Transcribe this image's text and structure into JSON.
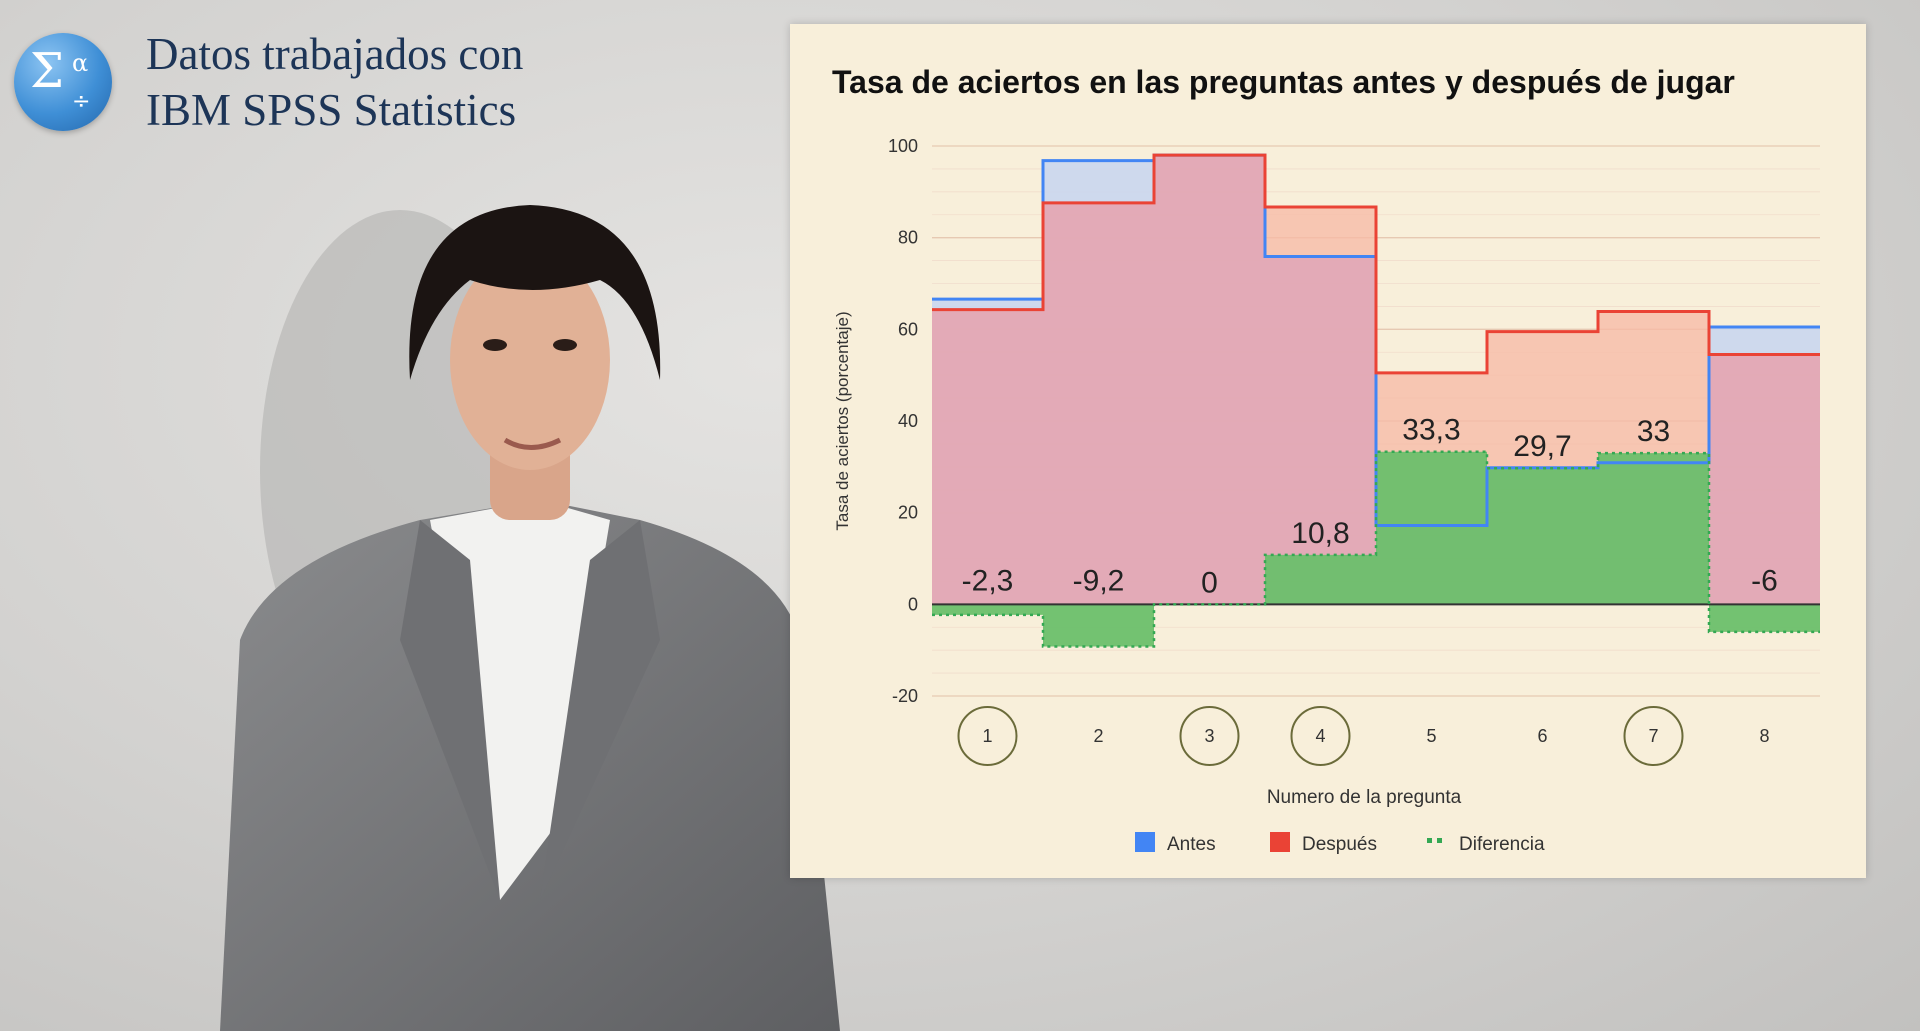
{
  "logo": {
    "icon": "sigma-alpha-divide-icon",
    "line1": "Datos trabajados con",
    "line2": "IBM SPSS Statistics"
  },
  "chart_data": {
    "type": "area",
    "title": "Tasa de aciertos en las preguntas antes y después de jugar",
    "xlabel": "Numero de la pregunta",
    "ylabel": "Tasa de aciertos (porcentaje)",
    "categories": [
      "1",
      "2",
      "3",
      "4",
      "5",
      "6",
      "7",
      "8"
    ],
    "circled_categories": [
      "1",
      "3",
      "4",
      "7"
    ],
    "ylim": [
      -20,
      100
    ],
    "yticks": [
      "-20",
      "0",
      "20",
      "40",
      "60",
      "80",
      "100"
    ],
    "grid": true,
    "legend_position": "bottom",
    "series": [
      {
        "name": "Antes",
        "color": "#4285f4",
        "fill": "#c9d6ee",
        "values": [
          66.6,
          96.8,
          98.0,
          75.9,
          17.2,
          29.8,
          30.9,
          60.5
        ]
      },
      {
        "name": "Después",
        "color": "#ea4335",
        "fill": "#f7b8a4",
        "values": [
          64.3,
          87.6,
          98.0,
          86.7,
          50.5,
          59.5,
          63.9,
          54.5
        ]
      },
      {
        "name": "Diferencia",
        "color": "#34a853",
        "fill": "#6cbf6c",
        "values": [
          -2.3,
          -9.2,
          0,
          10.8,
          33.3,
          29.7,
          33,
          -6
        ]
      }
    ],
    "data_labels": [
      "-2,3",
      "-9,2",
      "0",
      "10,8",
      "33,3",
      "29,7",
      "33",
      "-6"
    ]
  }
}
